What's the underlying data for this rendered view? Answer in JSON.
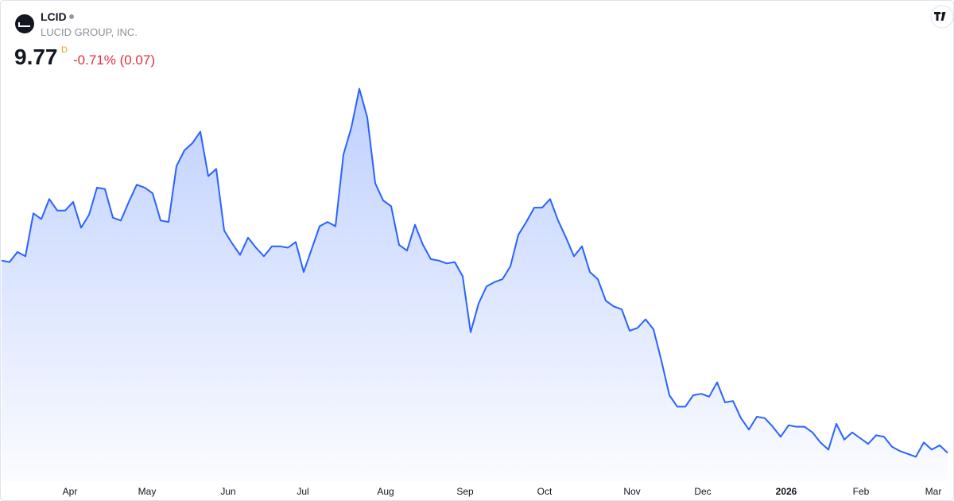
{
  "header": {
    "symbol": "LCID",
    "company": "LUCID GROUP, INC.",
    "price": "9.77",
    "price_flag": "D",
    "change": "-0.71% (0.07)"
  },
  "chart_data": {
    "type": "area",
    "color": "#2962ff",
    "values": [
      23.2,
      23.1,
      23.8,
      23.5,
      26.5,
      26.1,
      27.5,
      26.7,
      26.7,
      27.3,
      25.5,
      26.4,
      28.3,
      28.2,
      26.2,
      26.0,
      27.3,
      28.5,
      28.3,
      27.9,
      26.0,
      25.9,
      29.8,
      30.9,
      31.4,
      32.2,
      29.1,
      29.6,
      25.3,
      24.4,
      23.6,
      24.8,
      24.1,
      23.5,
      24.2,
      24.2,
      24.1,
      24.5,
      22.4,
      24.0,
      25.6,
      25.9,
      25.6,
      30.6,
      32.5,
      35.2,
      33.2,
      28.6,
      27.4,
      27.0,
      24.3,
      23.9,
      25.7,
      24.3,
      23.3,
      23.2,
      23.0,
      23.1,
      22.1,
      18.2,
      20.2,
      21.4,
      21.7,
      21.9,
      22.8,
      25.0,
      25.9,
      26.9,
      26.9,
      27.5,
      26.0,
      24.8,
      23.5,
      24.2,
      22.4,
      21.9,
      20.4,
      20.0,
      19.8,
      18.3,
      18.5,
      19.1,
      18.4,
      16.2,
      13.8,
      13.0,
      13.0,
      13.8,
      13.9,
      13.7,
      14.7,
      13.3,
      13.4,
      12.2,
      11.4,
      12.3,
      12.2,
      11.6,
      10.9,
      11.7,
      11.6,
      11.6,
      11.2,
      10.5,
      10.0,
      11.8,
      10.7,
      11.2,
      10.8,
      10.4,
      11.0,
      10.9,
      10.2,
      9.9,
      9.7,
      9.5,
      10.5,
      10.0,
      10.3,
      9.77
    ],
    "xlim": [
      -0.2,
      119.8
    ],
    "ylim": [
      7.8,
      36.4
    ],
    "xticks": [
      {
        "value": 8.6,
        "label": "Apr"
      },
      {
        "value": 18.3,
        "label": "May"
      },
      {
        "value": 28.5,
        "label": "Jun"
      },
      {
        "value": 37.9,
        "label": "Jul"
      },
      {
        "value": 48.3,
        "label": "Aug"
      },
      {
        "value": 58.3,
        "label": "Sep"
      },
      {
        "value": 68.3,
        "label": "Oct"
      },
      {
        "value": 79.3,
        "label": "Nov"
      },
      {
        "value": 88.2,
        "label": "Dec"
      },
      {
        "value": 98.7,
        "label": "2026"
      },
      {
        "value": 108.1,
        "label": "Feb"
      },
      {
        "value": 117.2,
        "label": "Mar"
      }
    ]
  }
}
